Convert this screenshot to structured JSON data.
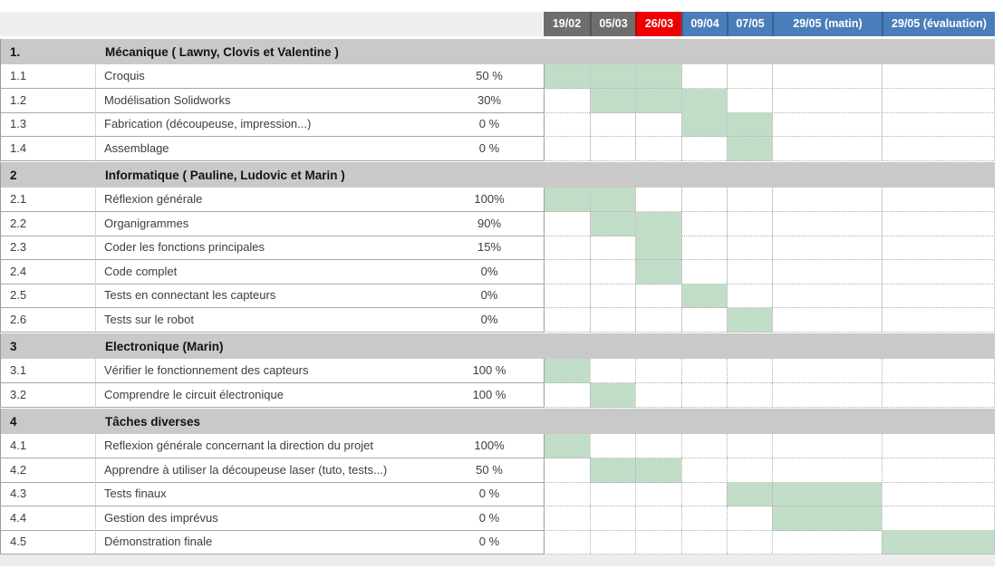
{
  "header": {
    "dates": [
      {
        "label": "19/02",
        "bg": "#6e6e6e"
      },
      {
        "label": "05/03",
        "bg": "#6e6e6e"
      },
      {
        "label": "26/03",
        "bg": "#ee0000"
      },
      {
        "label": "09/04",
        "bg": "#4a7dbb"
      },
      {
        "label": "07/05",
        "bg": "#4a7dbb"
      },
      {
        "label": "29/05 (matin)",
        "bg": "#4a7dbb"
      },
      {
        "label": "29/05 (évaluation)",
        "bg": "#4a7dbb"
      }
    ]
  },
  "colors": {
    "fill_green": "#c2ddc7",
    "section_band": "#c9c9c9",
    "header_gray": "#6e6e6e",
    "header_red": "#ee0000",
    "header_blue": "#4a7dbb"
  },
  "sections": [
    {
      "num": "1.",
      "title": "Mécanique ( Lawny, Clovis et Valentine )",
      "tasks": [
        {
          "num": "1.1",
          "name": "Croquis",
          "pct": "50 %",
          "cells": [
            1,
            2,
            3
          ]
        },
        {
          "num": "1.2",
          "name": "Modélisation Solidworks",
          "pct": "30%",
          "cells": [
            2,
            3,
            4
          ]
        },
        {
          "num": "1.3",
          "name": "Fabrication (découpeuse, impression...)",
          "pct": "0 %",
          "cells": [
            4,
            5
          ]
        },
        {
          "num": "1.4",
          "name": "Assemblage",
          "pct": "0 %",
          "cells": [
            5
          ]
        }
      ]
    },
    {
      "num": "2",
      "title": "Informatique ( Pauline, Ludovic et Marin )",
      "tasks": [
        {
          "num": "2.1",
          "name": "Réflexion générale",
          "pct": "100%",
          "cells": [
            1,
            2
          ]
        },
        {
          "num": "2.2",
          "name": "Organigrammes",
          "pct": "90%",
          "cells": [
            2,
            3
          ]
        },
        {
          "num": "2.3",
          "name": "Coder les fonctions principales",
          "pct": "15%",
          "cells": [
            3
          ]
        },
        {
          "num": "2.4",
          "name": "Code complet",
          "pct": "0%",
          "cells": [
            3
          ]
        },
        {
          "num": "2.5",
          "name": "Tests en connectant les capteurs",
          "pct": "0%",
          "cells": [
            4
          ]
        },
        {
          "num": "2.6",
          "name": "Tests sur le robot",
          "pct": "0%",
          "cells": [
            5
          ]
        }
      ]
    },
    {
      "num": "3",
      "title": "Electronique (Marin)",
      "tasks": [
        {
          "num": "3.1",
          "name": "Vérifier le fonctionnement des capteurs",
          "pct": "100 %",
          "cells": [
            1
          ]
        },
        {
          "num": "3.2",
          "name": "Comprendre le circuit électronique",
          "pct": "100 %",
          "cells": [
            2
          ]
        }
      ]
    },
    {
      "num": "4",
      "title": "Tâches diverses",
      "tasks": [
        {
          "num": "4.1",
          "name": "Reflexion générale concernant la direction du projet",
          "pct": "100%",
          "cells": [
            1
          ]
        },
        {
          "num": "4.2",
          "name": "Apprendre à utiliser la découpeuse laser (tuto, tests...)",
          "pct": "50 %",
          "cells": [
            2,
            3
          ]
        },
        {
          "num": "4.3",
          "name": "Tests finaux",
          "pct": "0 %",
          "cells": [
            5,
            6
          ]
        },
        {
          "num": "4.4",
          "name": "Gestion des imprévus",
          "pct": "0 %",
          "cells": [
            6
          ]
        },
        {
          "num": "4.5",
          "name": "Démonstration finale",
          "pct": "0 %",
          "cells": [
            7
          ]
        }
      ]
    }
  ]
}
